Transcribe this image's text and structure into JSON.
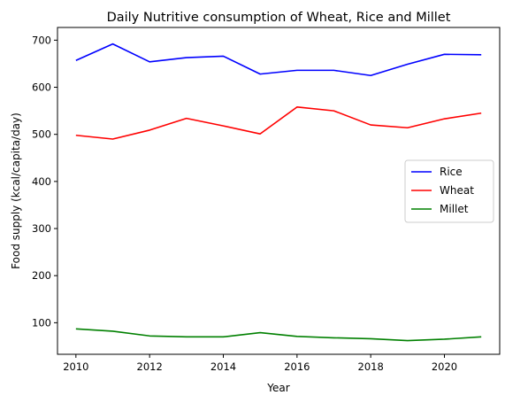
{
  "chart_data": {
    "type": "line",
    "title": "Daily Nutritive consumption of Wheat, Rice and Millet",
    "xlabel": "Year",
    "ylabel": "Food supply (kcal/capita/day)",
    "xlim": [
      2009.5,
      2021.5
    ],
    "ylim": [
      33,
      727
    ],
    "xticks": [
      2010,
      2012,
      2014,
      2016,
      2018,
      2020
    ],
    "yticks": [
      100,
      200,
      300,
      400,
      500,
      600,
      700
    ],
    "grid": false,
    "legend_position": "center-right",
    "x": [
      2010,
      2011,
      2012,
      2013,
      2014,
      2015,
      2016,
      2017,
      2018,
      2019,
      2020,
      2021
    ],
    "series": [
      {
        "name": "Rice",
        "color": "#0000ff",
        "values": [
          657,
          692,
          654,
          663,
          666,
          628,
          636,
          636,
          625,
          649,
          670,
          669
        ]
      },
      {
        "name": "Wheat",
        "color": "#ff0000",
        "values": [
          498,
          490,
          509,
          534,
          518,
          501,
          558,
          550,
          520,
          514,
          533,
          545
        ]
      },
      {
        "name": "Millet",
        "color": "#008000",
        "values": [
          87,
          82,
          72,
          70,
          70,
          79,
          71,
          68,
          66,
          62,
          65,
          70
        ]
      }
    ]
  }
}
